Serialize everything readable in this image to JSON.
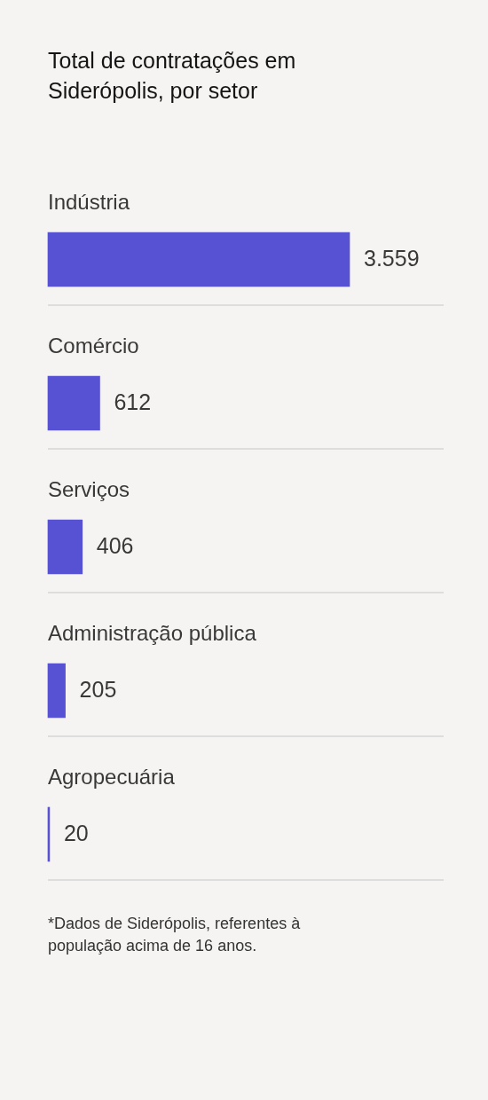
{
  "chart_data": {
    "type": "bar",
    "orientation": "horizontal",
    "title": "Total de contratações em Siderópolis, por setor",
    "categories": [
      "Indústria",
      "Comércio",
      "Serviços",
      "Administração pública",
      "Agropecuária"
    ],
    "values": [
      3559,
      612,
      406,
      205,
      20
    ],
    "color": "#5751d4",
    "value_labels": [
      "3.559",
      "612",
      "406",
      "205",
      "20"
    ],
    "grid": "y",
    "annotations": [
      "*Dados de Siderópolis, referentes à população acima de 16 anos."
    ]
  }
}
